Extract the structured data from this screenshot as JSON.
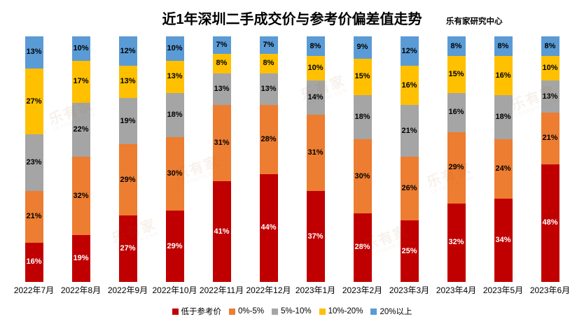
{
  "header": {
    "title": "近1年深圳二手成交价与参考价偏差值走势",
    "source": "乐有家研究中心"
  },
  "watermark": {
    "cn": "乐有家",
    "en": "LEYOUJIA.COM"
  },
  "chart_data": {
    "type": "bar",
    "stacked": true,
    "percent_stacked": true,
    "title": "近1年深圳二手成交价与参考价偏差值走势",
    "xlabel": "",
    "ylabel": "",
    "ylim": [
      0,
      100
    ],
    "grid": false,
    "legend_position": "bottom",
    "value_suffix": "%",
    "categories": [
      "2022年7月",
      "2022年8月",
      "2022年9月",
      "2022年10月",
      "2022年11月",
      "2022年12月",
      "2023年1月",
      "2023年2月",
      "2023年3月",
      "2023年4月",
      "2023年5月",
      "2023年6月"
    ],
    "series": [
      {
        "name": "低于参考价",
        "color": "#C00000",
        "label_color": "#FFFFFF",
        "values": [
          16,
          19,
          27,
          29,
          41,
          44,
          37,
          28,
          25,
          32,
          34,
          48
        ]
      },
      {
        "name": "0%-5%",
        "color": "#ED7D31",
        "label_color": "#000000",
        "values": [
          21,
          32,
          29,
          30,
          31,
          28,
          31,
          30,
          26,
          29,
          24,
          21
        ]
      },
      {
        "name": "5%-10%",
        "color": "#A5A5A5",
        "label_color": "#000000",
        "values": [
          23,
          22,
          19,
          18,
          13,
          13,
          14,
          18,
          21,
          16,
          18,
          13
        ]
      },
      {
        "name": "10%-20%",
        "color": "#FFC000",
        "label_color": "#000000",
        "values": [
          27,
          17,
          13,
          13,
          8,
          8,
          10,
          15,
          16,
          15,
          16,
          10
        ]
      },
      {
        "name": "20%以上",
        "color": "#5B9BD5",
        "label_color": "#000000",
        "values": [
          13,
          10,
          12,
          10,
          7,
          7,
          8,
          9,
          12,
          8,
          8,
          8
        ]
      }
    ]
  }
}
